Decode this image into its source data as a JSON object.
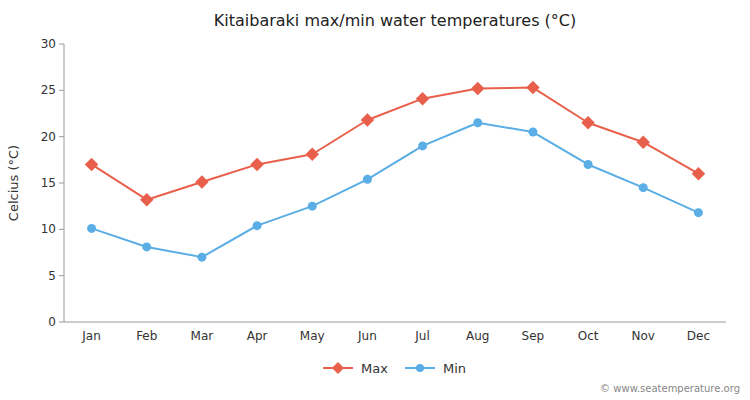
{
  "chart_data": {
    "type": "line",
    "title": "Kitaibaraki max/min water temperatures (°C)",
    "ylabel": "Celcius (°C)",
    "categories": [
      "Jan",
      "Feb",
      "Mar",
      "Apr",
      "May",
      "Jun",
      "Jul",
      "Aug",
      "Sep",
      "Oct",
      "Nov",
      "Dec"
    ],
    "series": [
      {
        "name": "Max",
        "color": "#e8604c",
        "marker": "diamond",
        "values": [
          17.0,
          13.2,
          15.1,
          17.0,
          18.1,
          21.8,
          24.1,
          25.2,
          25.3,
          21.5,
          19.4,
          16.0
        ]
      },
      {
        "name": "Min",
        "color": "#5aade5",
        "marker": "circle",
        "values": [
          10.1,
          8.1,
          7.0,
          10.4,
          12.5,
          15.4,
          19.0,
          21.5,
          20.5,
          17.0,
          14.5,
          11.8
        ]
      }
    ],
    "ylim": [
      0,
      30
    ],
    "yticks": [
      0,
      5,
      10,
      15,
      20,
      25,
      30
    ],
    "grid": false,
    "legend": "bottom",
    "annotations": [
      "© www.seatemperature.org"
    ]
  }
}
